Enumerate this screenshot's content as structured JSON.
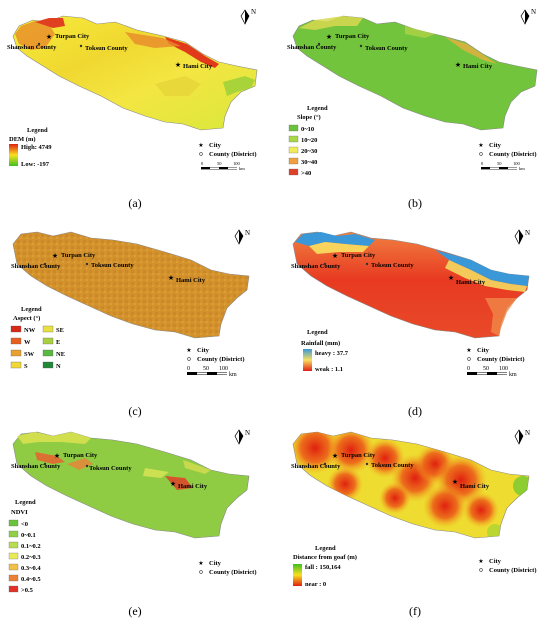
{
  "maps": [
    {
      "id": "a",
      "caption": "(a)",
      "legend_title": "Legend",
      "variable": "DEM (m)",
      "high_label": "High: 4749",
      "low_label": "Low: -197",
      "gradient": [
        "#e02010",
        "#f8e020",
        "#40c020"
      ],
      "body_colors": [
        "#f3e23a",
        "#e8902a",
        "#d83a1a",
        "#9fd238"
      ]
    },
    {
      "id": "b",
      "caption": "(b)",
      "legend_title": "Legend",
      "variable": "Slope (°)",
      "classes": [
        {
          "label": "0~10",
          "color": "#6cc23a"
        },
        {
          "label": "10~20",
          "color": "#a8d848"
        },
        {
          "label": "20~30",
          "color": "#f0ec58"
        },
        {
          "label": "30~40",
          "color": "#f0a040"
        },
        {
          "label": ">40",
          "color": "#e04028"
        }
      ]
    },
    {
      "id": "c",
      "caption": "(c)",
      "legend_title": "Legend",
      "variable": "Aspect (°)",
      "classes": [
        {
          "label": "NW",
          "color": "#d82818"
        },
        {
          "label": "SE",
          "color": "#e8e040"
        },
        {
          "label": "W",
          "color": "#e86020"
        },
        {
          "label": "E",
          "color": "#a8d040"
        },
        {
          "label": "SW",
          "color": "#e8a030"
        },
        {
          "label": "NE",
          "color": "#58b840"
        },
        {
          "label": "S",
          "color": "#f0d838"
        },
        {
          "label": "N",
          "color": "#208838"
        }
      ]
    },
    {
      "id": "d",
      "caption": "(d)",
      "legend_title": "Legend",
      "variable": "Rainfall (mm)",
      "high_label": "heavy : 37.7",
      "low_label": "weak : 1.1",
      "gradient": [
        "#3a98d8",
        "#f8e060",
        "#e02018"
      ]
    },
    {
      "id": "e",
      "caption": "(e)",
      "legend_title": "Legend",
      "variable": "NDVI",
      "classes": [
        {
          "label": "<0",
          "color": "#6cc23a"
        },
        {
          "label": "0~0.1",
          "color": "#8fd048"
        },
        {
          "label": "0.1~0.2",
          "color": "#b8dc50"
        },
        {
          "label": "0.2~0.3",
          "color": "#e8ea58"
        },
        {
          "label": "0.3~0.4",
          "color": "#f0c048"
        },
        {
          "label": "0.4~0.5",
          "color": "#ec8038"
        },
        {
          "label": ">0.5",
          "color": "#e03028"
        }
      ]
    },
    {
      "id": "f",
      "caption": "(f)",
      "legend_title": "Legend",
      "variable": "Distance from goaf (m)",
      "high_label": "fall : 150,164",
      "low_label": "near : 0",
      "gradient": [
        "#40c020",
        "#f8e020",
        "#e02010"
      ]
    }
  ],
  "places": {
    "turpan": "Turpan City",
    "shanshan": "Shanshan County",
    "toksun": "Toksun County",
    "hami": "Hami City"
  },
  "map_legend": {
    "city": "City",
    "county": "County (District)",
    "scale_ticks": [
      "0",
      "50",
      "100"
    ],
    "scale_unit": "km",
    "north": "N"
  }
}
